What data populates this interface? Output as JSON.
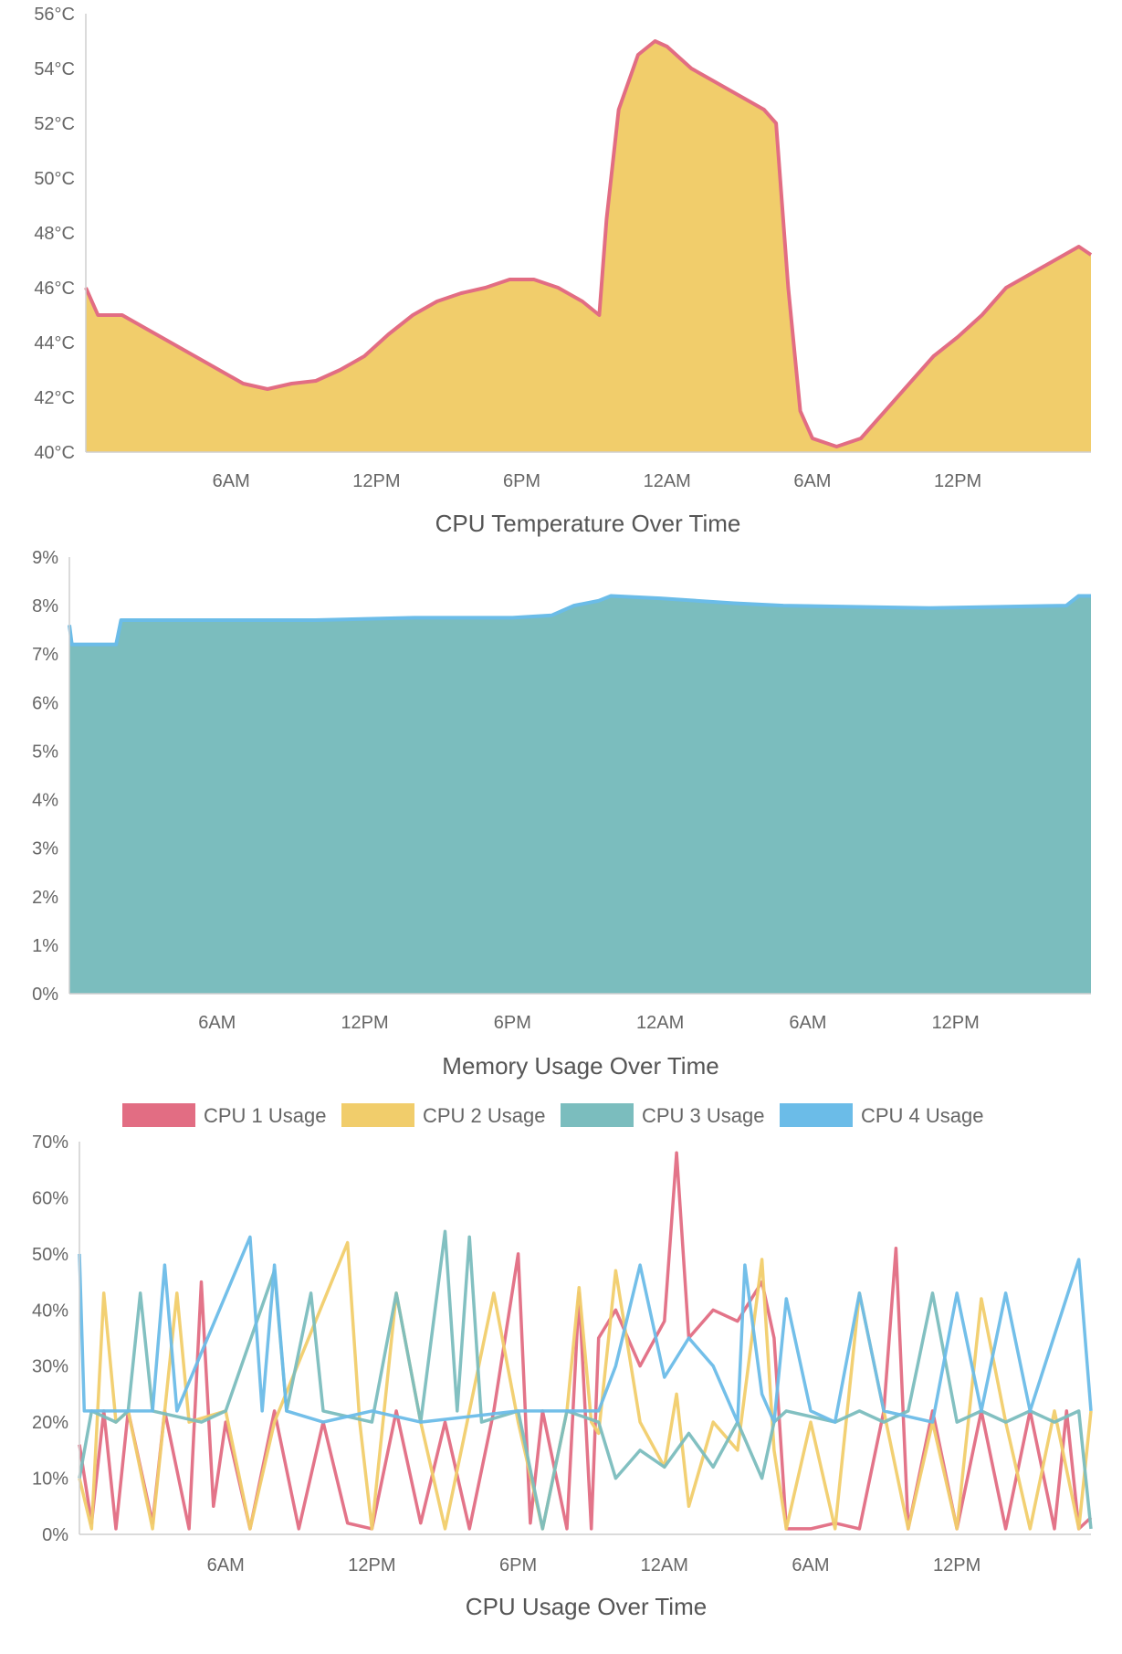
{
  "colors": {
    "red": "#e26d83",
    "yellow": "#f1cd6b",
    "teal": "#7bbdbe",
    "blue": "#6bbce8",
    "axis": "#cfcfcf",
    "tick_text": "#666666"
  },
  "chart_data": [
    {
      "id": "temperature",
      "type": "area",
      "title": "CPU Temperature Over Time",
      "grid": false,
      "legend": "none",
      "x_range_hours": [
        0,
        41.5
      ],
      "x_ticks": [
        {
          "label": "6AM",
          "at": 6
        },
        {
          "label": "12PM",
          "at": 12
        },
        {
          "label": "6PM",
          "at": 18
        },
        {
          "label": "12AM",
          "at": 24
        },
        {
          "label": "6AM",
          "at": 30
        },
        {
          "label": "12PM",
          "at": 36
        }
      ],
      "y_ticks": [
        "40°C",
        "42°C",
        "44°C",
        "46°C",
        "48°C",
        "50°C",
        "52°C",
        "54°C",
        "56°C"
      ],
      "ylim": [
        40,
        56
      ],
      "series": [
        {
          "line_color": "#e26d83",
          "fill_color": "#f1cd6b",
          "points": [
            [
              0,
              46
            ],
            [
              0.5,
              45
            ],
            [
              1.5,
              45
            ],
            [
              2.5,
              44.5
            ],
            [
              3.5,
              44
            ],
            [
              4.5,
              43.5
            ],
            [
              5.5,
              43
            ],
            [
              6.5,
              42.5
            ],
            [
              7.5,
              42.3
            ],
            [
              8.5,
              42.5
            ],
            [
              9.5,
              42.6
            ],
            [
              10.5,
              43
            ],
            [
              11.5,
              43.5
            ],
            [
              12.5,
              44.3
            ],
            [
              13.5,
              45
            ],
            [
              14.5,
              45.5
            ],
            [
              15.5,
              45.8
            ],
            [
              16.5,
              46
            ],
            [
              17.5,
              46.3
            ],
            [
              18.5,
              46.3
            ],
            [
              19.5,
              46
            ],
            [
              20.5,
              45.5
            ],
            [
              21.2,
              45
            ],
            [
              21.5,
              48.5
            ],
            [
              22,
              52.5
            ],
            [
              22.8,
              54.5
            ],
            [
              23.5,
              55
            ],
            [
              24,
              54.8
            ],
            [
              25,
              54
            ],
            [
              26,
              53.5
            ],
            [
              27,
              53
            ],
            [
              28,
              52.5
            ],
            [
              28.5,
              52
            ],
            [
              29,
              46
            ],
            [
              29.5,
              41.5
            ],
            [
              30,
              40.5
            ],
            [
              31,
              40.2
            ],
            [
              32,
              40.5
            ],
            [
              32.5,
              41
            ],
            [
              33,
              41.5
            ],
            [
              34,
              42.5
            ],
            [
              35,
              43.5
            ],
            [
              36,
              44.2
            ],
            [
              37,
              45
            ],
            [
              38,
              46
            ],
            [
              39,
              46.5
            ],
            [
              40,
              47
            ],
            [
              41,
              47.5
            ],
            [
              41.5,
              47.2
            ]
          ]
        }
      ]
    },
    {
      "id": "memory",
      "type": "area",
      "title": "Memory Usage Over Time",
      "grid": false,
      "legend": "none",
      "x_range_hours": [
        0,
        41.5
      ],
      "x_ticks": [
        {
          "label": "6AM",
          "at": 6
        },
        {
          "label": "12PM",
          "at": 12
        },
        {
          "label": "6PM",
          "at": 18
        },
        {
          "label": "12AM",
          "at": 24
        },
        {
          "label": "6AM",
          "at": 30
        },
        {
          "label": "12PM",
          "at": 36
        }
      ],
      "y_ticks": [
        "0%",
        "1%",
        "2%",
        "3%",
        "4%",
        "5%",
        "6%",
        "7%",
        "8%",
        "9%"
      ],
      "ylim": [
        0,
        9
      ],
      "series": [
        {
          "line_color": "#6bbce8",
          "fill_color": "#7bbdbe",
          "points": [
            [
              0,
              7.6
            ],
            [
              0.1,
              7.2
            ],
            [
              1.9,
              7.2
            ],
            [
              2.1,
              7.7
            ],
            [
              10,
              7.7
            ],
            [
              14,
              7.75
            ],
            [
              18,
              7.75
            ],
            [
              19.6,
              7.8
            ],
            [
              20.5,
              8.0
            ],
            [
              21.5,
              8.1
            ],
            [
              22,
              8.2
            ],
            [
              24,
              8.15
            ],
            [
              27,
              8.05
            ],
            [
              29,
              8.0
            ],
            [
              35,
              7.95
            ],
            [
              40.5,
              8.0
            ],
            [
              41,
              8.2
            ],
            [
              41.5,
              8.2
            ]
          ]
        }
      ]
    },
    {
      "id": "cpu-usage",
      "type": "line",
      "title": "CPU Usage Over Time",
      "grid": false,
      "legend": "top",
      "x_range_hours": [
        0,
        41.5
      ],
      "x_ticks": [
        {
          "label": "6AM",
          "at": 6
        },
        {
          "label": "12PM",
          "at": 12
        },
        {
          "label": "6PM",
          "at": 18
        },
        {
          "label": "12AM",
          "at": 24
        },
        {
          "label": "6AM",
          "at": 30
        },
        {
          "label": "12PM",
          "at": 36
        }
      ],
      "y_ticks": [
        "0%",
        "10%",
        "20%",
        "30%",
        "40%",
        "50%",
        "60%",
        "70%"
      ],
      "ylim": [
        0,
        70
      ],
      "series": [
        {
          "name": "CPU 1 Usage",
          "color": "#e26d83",
          "points": [
            [
              0,
              16
            ],
            [
              0.5,
              2
            ],
            [
              1,
              22
            ],
            [
              1.5,
              1
            ],
            [
              2,
              22
            ],
            [
              3,
              2
            ],
            [
              3.5,
              22
            ],
            [
              4.5,
              1
            ],
            [
              5,
              45
            ],
            [
              5.5,
              5
            ],
            [
              6,
              20
            ],
            [
              7,
              1
            ],
            [
              8,
              22
            ],
            [
              9,
              1
            ],
            [
              10,
              20
            ],
            [
              11,
              2
            ],
            [
              12,
              1
            ],
            [
              13,
              22
            ],
            [
              14,
              2
            ],
            [
              15,
              20
            ],
            [
              16,
              1
            ],
            [
              17,
              22
            ],
            [
              18,
              50
            ],
            [
              18.5,
              2
            ],
            [
              19,
              22
            ],
            [
              20,
              1
            ],
            [
              20.5,
              43
            ],
            [
              21,
              1
            ],
            [
              21.3,
              35
            ],
            [
              22,
              40
            ],
            [
              23,
              30
            ],
            [
              24,
              38
            ],
            [
              24.5,
              68
            ],
            [
              25,
              35
            ],
            [
              26,
              40
            ],
            [
              27,
              38
            ],
            [
              28,
              45
            ],
            [
              28.5,
              35
            ],
            [
              29,
              1
            ],
            [
              30,
              1
            ],
            [
              31,
              2
            ],
            [
              32,
              1
            ],
            [
              33,
              22
            ],
            [
              33.5,
              51
            ],
            [
              34,
              1
            ],
            [
              35,
              22
            ],
            [
              36,
              1
            ],
            [
              37,
              22
            ],
            [
              38,
              1
            ],
            [
              39,
              22
            ],
            [
              40,
              1
            ],
            [
              40.5,
              22
            ],
            [
              41,
              1
            ],
            [
              41.5,
              3
            ]
          ]
        },
        {
          "name": "CPU 2 Usage",
          "color": "#f1cd6b",
          "points": [
            [
              0,
              10
            ],
            [
              0.5,
              1
            ],
            [
              1,
              43
            ],
            [
              1.5,
              20
            ],
            [
              2,
              22
            ],
            [
              3,
              1
            ],
            [
              4,
              43
            ],
            [
              4.5,
              20
            ],
            [
              6,
              22
            ],
            [
              7,
              1
            ],
            [
              8,
              20
            ],
            [
              11,
              52
            ],
            [
              11.5,
              20
            ],
            [
              12,
              1
            ],
            [
              13,
              43
            ],
            [
              14,
              20
            ],
            [
              15,
              1
            ],
            [
              16,
              22
            ],
            [
              17,
              43
            ],
            [
              18,
              20
            ],
            [
              19,
              1
            ],
            [
              20,
              22
            ],
            [
              20.5,
              44
            ],
            [
              21,
              20
            ],
            [
              21.3,
              18
            ],
            [
              22,
              47
            ],
            [
              23,
              20
            ],
            [
              24,
              12
            ],
            [
              24.5,
              25
            ],
            [
              25,
              5
            ],
            [
              26,
              20
            ],
            [
              27,
              15
            ],
            [
              28,
              49
            ],
            [
              28.5,
              15
            ],
            [
              29,
              1
            ],
            [
              30,
              20
            ],
            [
              31,
              1
            ],
            [
              32,
              43
            ],
            [
              33,
              22
            ],
            [
              34,
              1
            ],
            [
              35,
              20
            ],
            [
              36,
              1
            ],
            [
              37,
              42
            ],
            [
              38,
              20
            ],
            [
              39,
              1
            ],
            [
              40,
              22
            ],
            [
              41,
              1
            ],
            [
              41.5,
              22
            ]
          ]
        },
        {
          "name": "CPU 3 Usage",
          "color": "#7bbdbe",
          "points": [
            [
              0,
              10
            ],
            [
              0.5,
              22
            ],
            [
              1.5,
              20
            ],
            [
              2,
              22
            ],
            [
              2.5,
              43
            ],
            [
              3,
              22
            ],
            [
              5,
              20
            ],
            [
              6,
              22
            ],
            [
              8,
              47
            ],
            [
              8.5,
              22
            ],
            [
              9.5,
              43
            ],
            [
              10,
              22
            ],
            [
              12,
              20
            ],
            [
              13,
              43
            ],
            [
              14,
              20
            ],
            [
              15,
              54
            ],
            [
              15.5,
              22
            ],
            [
              16,
              53
            ],
            [
              16.5,
              20
            ],
            [
              18,
              22
            ],
            [
              19,
              1
            ],
            [
              20,
              22
            ],
            [
              21.3,
              20
            ],
            [
              22,
              10
            ],
            [
              23,
              15
            ],
            [
              24,
              12
            ],
            [
              25,
              18
            ],
            [
              26,
              12
            ],
            [
              27,
              20
            ],
            [
              28,
              10
            ],
            [
              28.5,
              20
            ],
            [
              29,
              22
            ],
            [
              31,
              20
            ],
            [
              32,
              22
            ],
            [
              33,
              20
            ],
            [
              34,
              22
            ],
            [
              35,
              43
            ],
            [
              36,
              20
            ],
            [
              37,
              22
            ],
            [
              38,
              20
            ],
            [
              39,
              22
            ],
            [
              40,
              20
            ],
            [
              41,
              22
            ],
            [
              41.5,
              1
            ]
          ]
        },
        {
          "name": "CPU 4 Usage",
          "color": "#6bbce8",
          "points": [
            [
              0,
              50
            ],
            [
              0.2,
              22
            ],
            [
              1,
              22
            ],
            [
              3,
              22
            ],
            [
              3.5,
              48
            ],
            [
              4,
              22
            ],
            [
              7,
              53
            ],
            [
              7.5,
              22
            ],
            [
              8,
              48
            ],
            [
              8.5,
              22
            ],
            [
              10,
              20
            ],
            [
              12,
              22
            ],
            [
              14,
              20
            ],
            [
              18,
              22
            ],
            [
              21.3,
              22
            ],
            [
              22,
              30
            ],
            [
              23,
              48
            ],
            [
              24,
              28
            ],
            [
              25,
              35
            ],
            [
              26,
              30
            ],
            [
              27,
              20
            ],
            [
              27.3,
              48
            ],
            [
              28,
              25
            ],
            [
              28.5,
              20
            ],
            [
              29,
              42
            ],
            [
              30,
              22
            ],
            [
              31,
              20
            ],
            [
              32,
              43
            ],
            [
              33,
              22
            ],
            [
              35,
              20
            ],
            [
              36,
              43
            ],
            [
              37,
              22
            ],
            [
              38,
              43
            ],
            [
              39,
              22
            ],
            [
              41,
              49
            ],
            [
              41.5,
              22
            ]
          ]
        }
      ]
    }
  ]
}
